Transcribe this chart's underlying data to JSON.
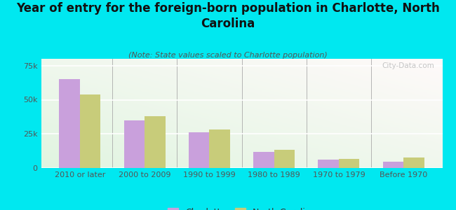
{
  "title": "Year of entry for the foreign-born population in Charlotte, North\nCarolina",
  "subtitle": "(Note: State values scaled to Charlotte population)",
  "categories": [
    "2010 or later",
    "2000 to 2009",
    "1990 to 1999",
    "1980 to 1989",
    "1970 to 1979",
    "Before 1970"
  ],
  "charlotte_values": [
    65000,
    35000,
    26000,
    12000,
    6000,
    4500
  ],
  "nc_values": [
    54000,
    38000,
    28000,
    13500,
    6500,
    7500
  ],
  "charlotte_color": "#c9a0dc",
  "nc_color": "#c8cc7a",
  "background_color": "#00e8f0",
  "plot_bg_color": "#e8f5e0",
  "ylim": [
    0,
    80000
  ],
  "yticks": [
    0,
    25000,
    50000,
    75000
  ],
  "ytick_labels": [
    "0",
    "25k",
    "50k",
    "75k"
  ],
  "watermark": "City-Data.com",
  "legend_charlotte": "Charlotte",
  "legend_nc": "North Carolina",
  "title_fontsize": 12,
  "subtitle_fontsize": 8,
  "tick_fontsize": 8,
  "legend_fontsize": 9
}
